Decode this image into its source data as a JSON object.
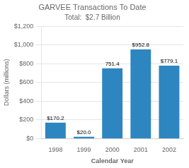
{
  "chart_data": {
    "type": "bar",
    "title": "GARVEE Transactions To Date",
    "subtitle": "Total:  $2.7 Billion",
    "categories": [
      "1998",
      "1999",
      "2000",
      "2001",
      "2002"
    ],
    "values": [
      170.2,
      20.0,
      751.4,
      952.8,
      779.1
    ],
    "value_labels": [
      "$170.2",
      "$20.0",
      "751.4",
      "$952.8",
      "$779.1"
    ],
    "data_labels": true,
    "color": "#2e86c1",
    "xlabel": "Calendar Year",
    "ylabel": "Dollars (millions)",
    "ylim": [
      0,
      1200
    ],
    "yticks": [
      {
        "value": 0,
        "label": "$0"
      },
      {
        "value": 200,
        "label": "$200"
      },
      {
        "value": 400,
        "label": "$400"
      },
      {
        "value": 600,
        "label": "$600"
      },
      {
        "value": 800,
        "label": "$800"
      },
      {
        "value": 1000,
        "label": "$1,000"
      },
      {
        "value": 1200,
        "label": "$1,200"
      }
    ],
    "grid": true
  }
}
